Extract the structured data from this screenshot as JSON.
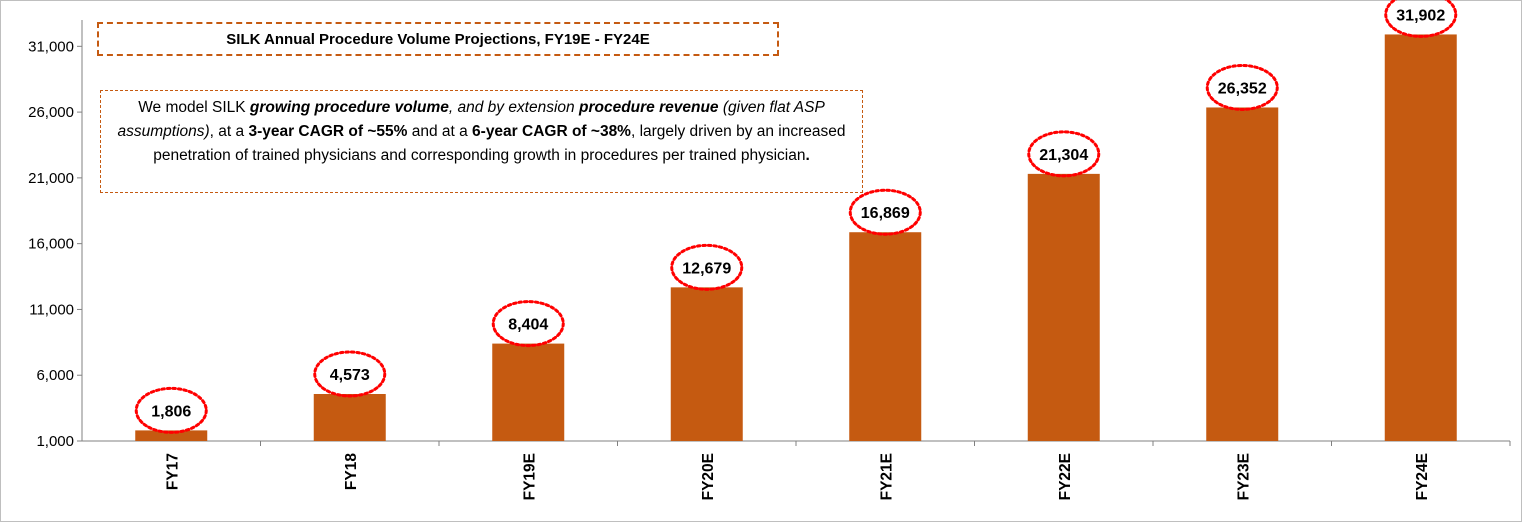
{
  "chart_data": {
    "type": "bar",
    "title": "SILK Annual Procedure Volume Projections, FY19E - FY24E",
    "categories": [
      "FY17",
      "FY18",
      "FY19E",
      "FY20E",
      "FY21E",
      "FY22E",
      "FY23E",
      "FY24E"
    ],
    "values": [
      1806,
      4573,
      8404,
      12679,
      16869,
      21304,
      26352,
      31902
    ],
    "data_labels": [
      "1,806",
      "4,573",
      "8,404",
      "12,679",
      "16,869",
      "21,304",
      "26,352",
      "31,902"
    ],
    "y_ticks": [
      1000,
      6000,
      11000,
      16000,
      21000,
      26000,
      31000
    ],
    "y_tick_labels": [
      "1,000",
      "6,000",
      "11,000",
      "16,000",
      "21,000",
      "26,000",
      "31,000"
    ],
    "ylim": [
      1000,
      33000
    ],
    "xlabel": "",
    "ylabel": "",
    "grid": false,
    "legend": "none",
    "bar_color": "#c55a11",
    "label_highlight_color": "#ff0000"
  },
  "annotation": {
    "segments": [
      {
        "text": "We model SILK ",
        "style": "normal"
      },
      {
        "text": "growing procedure volume",
        "style": "bold-italic"
      },
      {
        "text": ", and by extension ",
        "style": "italic"
      },
      {
        "text": "procedure revenue",
        "style": "bold-italic"
      },
      {
        "text": " (given flat ASP assumptions)",
        "style": "italic"
      },
      {
        "text": ", at a ",
        "style": "normal"
      },
      {
        "text": "3-year CAGR of ~55%",
        "style": "bold"
      },
      {
        "text": " and at a ",
        "style": "normal"
      },
      {
        "text": "6-year CAGR of ~38%",
        "style": "bold"
      },
      {
        "text": ", largely driven by an increased penetration of trained physicians and corresponding growth in procedures per trained physician",
        "style": "normal"
      },
      {
        "text": ".",
        "style": "bold"
      }
    ]
  }
}
